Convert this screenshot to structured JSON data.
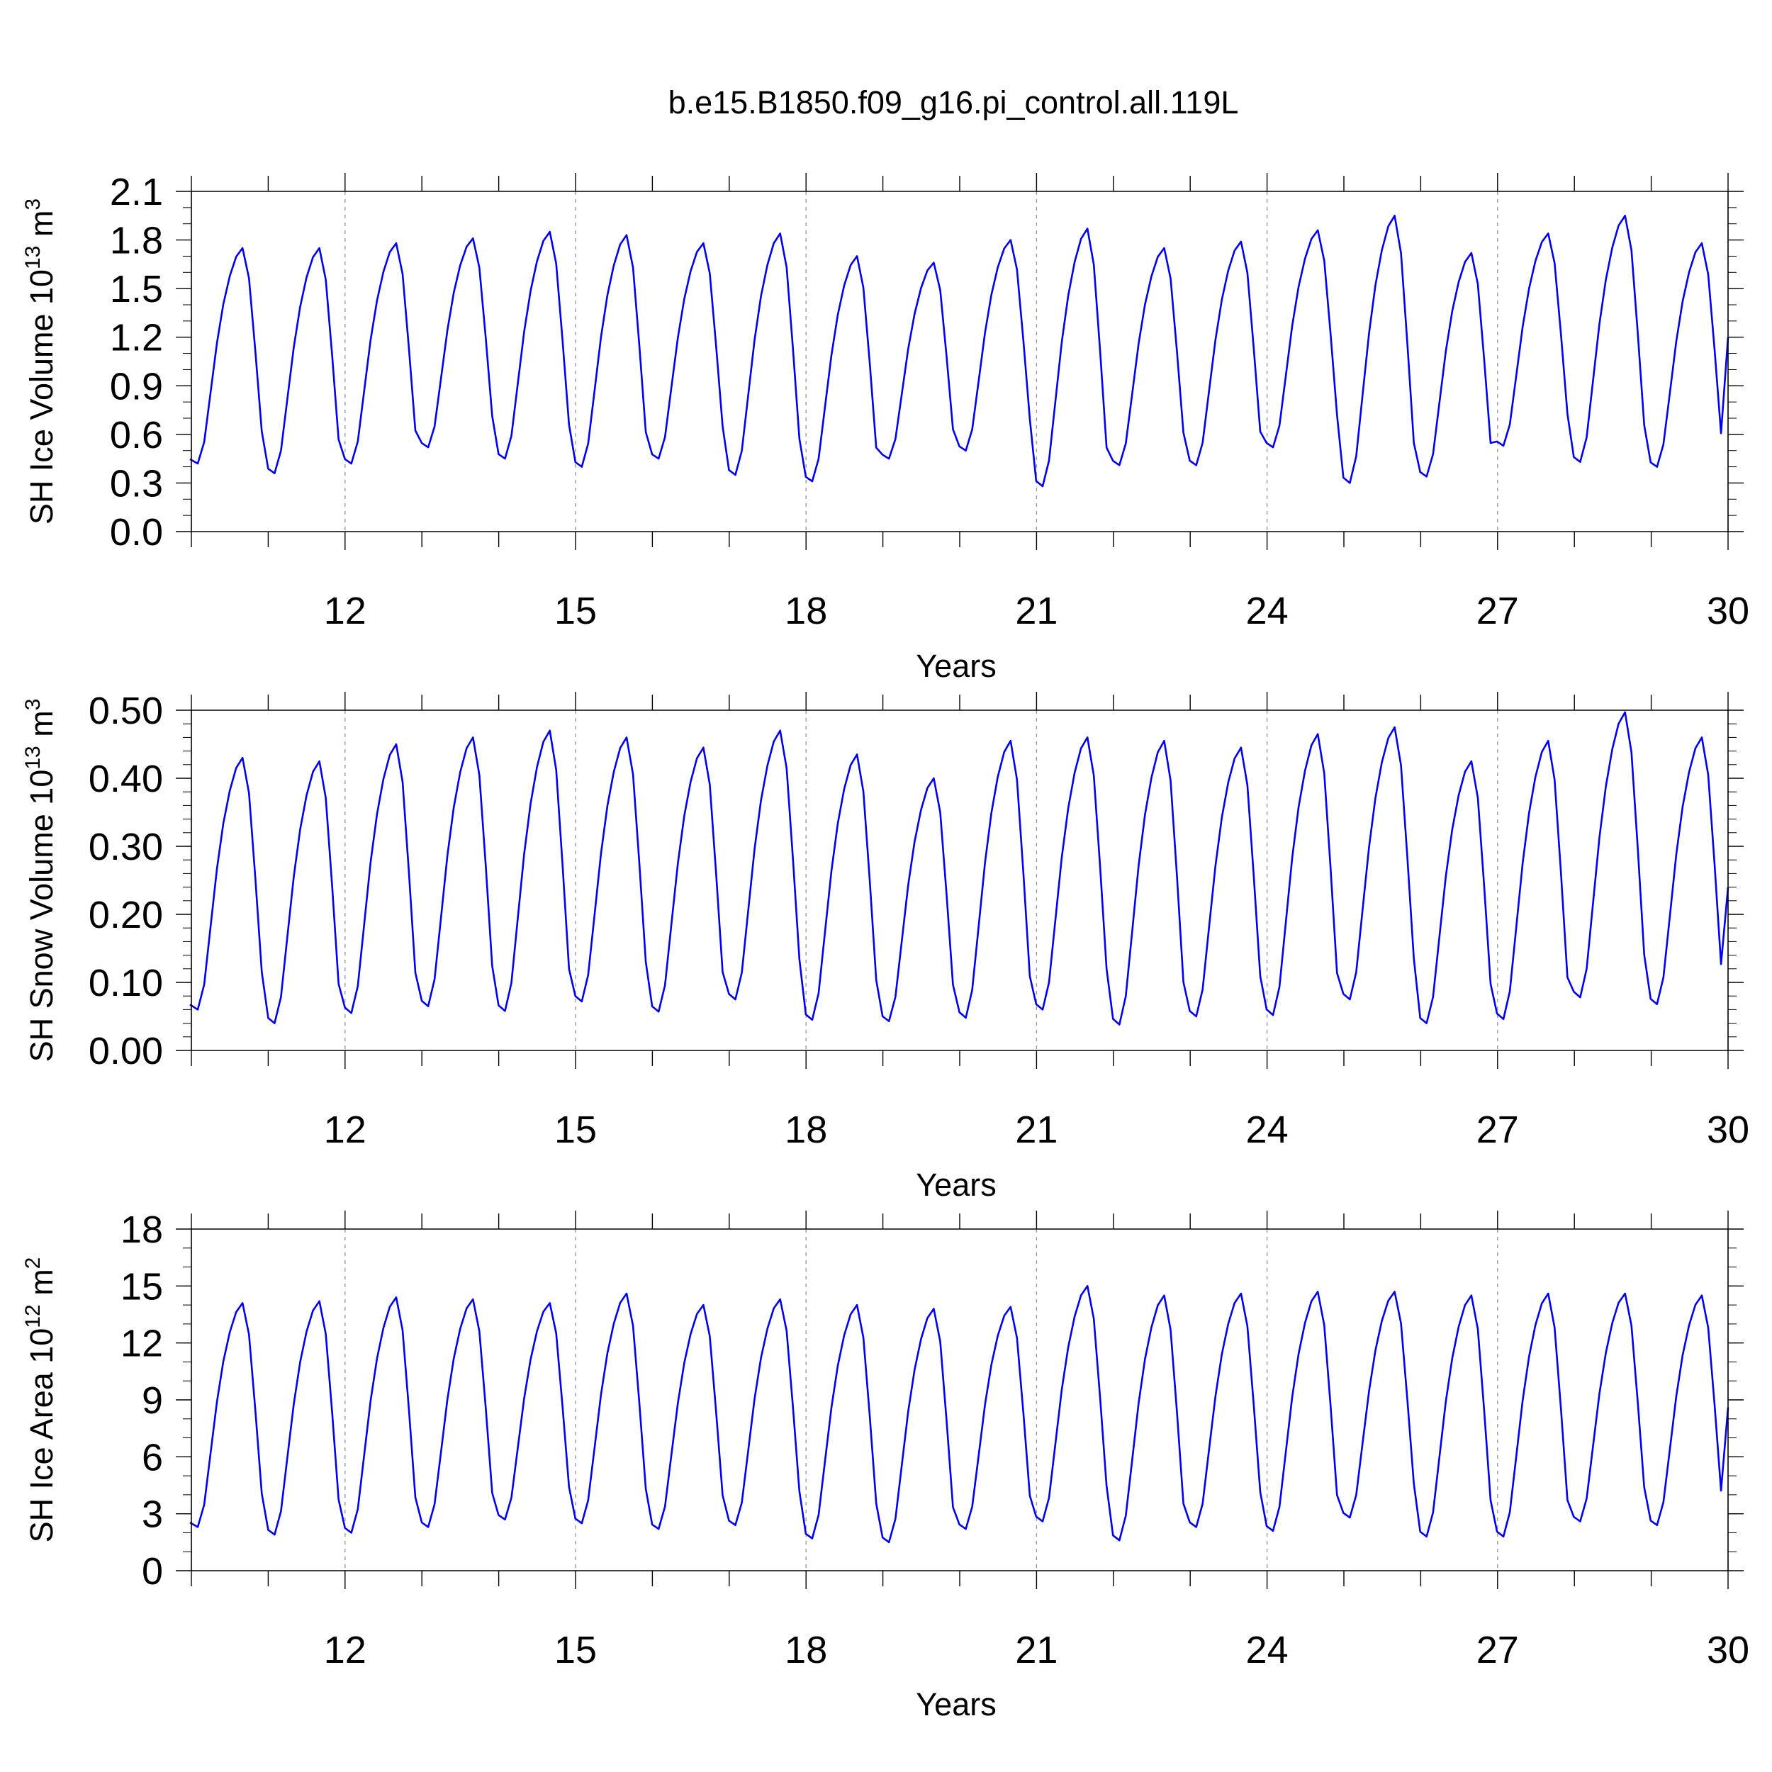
{
  "title": "b.e15.B1850.f09_g16.pi_control.all.119L",
  "chart_data": [
    {
      "type": "line",
      "ylabel": "SH Ice Volume 10",
      "ylabel_exp": "13",
      "ylabel_unit": "m",
      "ylabel_unit_exp": "3",
      "xlabel": "Years",
      "xlim": [
        10,
        30
      ],
      "xticks": [
        "12",
        "15",
        "18",
        "21",
        "24",
        "27",
        "30"
      ],
      "ylim": [
        0,
        2.1
      ],
      "yticks": [
        "0.0",
        "0.3",
        "0.6",
        "0.9",
        "1.2",
        "1.5",
        "1.8",
        "2.1"
      ],
      "ytick_step": 0.3,
      "y_minor_step": 0.1,
      "x_start": 10.0,
      "x_step": 0.0833,
      "series": [
        {
          "color": "#0000ee",
          "cycle_min": [
            0.42,
            0.36,
            0.42,
            0.52,
            0.45,
            0.4,
            0.45,
            0.35,
            0.31,
            0.45,
            0.5,
            0.28,
            0.41,
            0.41,
            0.52,
            0.3,
            0.34,
            0.53,
            0.43,
            0.4
          ],
          "cycle_max": [
            1.75,
            1.75,
            1.78,
            1.81,
            1.85,
            1.83,
            1.78,
            1.84,
            1.7,
            1.66,
            1.8,
            1.87,
            1.75,
            1.79,
            1.86,
            1.95,
            1.72,
            1.84,
            1.95,
            1.78
          ],
          "end_value": 1.2
        }
      ]
    },
    {
      "type": "line",
      "ylabel": "SH Snow Volume 10",
      "ylabel_exp": "13",
      "ylabel_unit": "m",
      "ylabel_unit_exp": "3",
      "xlabel": "Years",
      "xlim": [
        10,
        30
      ],
      "xticks": [
        "12",
        "15",
        "18",
        "21",
        "24",
        "27",
        "30"
      ],
      "ylim": [
        0,
        0.5
      ],
      "yticks": [
        "0.00",
        "0.10",
        "0.20",
        "0.30",
        "0.40",
        "0.50"
      ],
      "ytick_step": 0.1,
      "y_minor_step": 0.02,
      "x_start": 10.0,
      "x_step": 0.0833,
      "series": [
        {
          "color": "#0000ee",
          "cycle_min": [
            0.06,
            0.04,
            0.055,
            0.065,
            0.058,
            0.072,
            0.057,
            0.075,
            0.045,
            0.043,
            0.048,
            0.06,
            0.038,
            0.05,
            0.052,
            0.075,
            0.04,
            0.046,
            0.078,
            0.068
          ],
          "cycle_max": [
            0.43,
            0.425,
            0.45,
            0.46,
            0.47,
            0.46,
            0.445,
            0.47,
            0.435,
            0.4,
            0.455,
            0.46,
            0.455,
            0.445,
            0.465,
            0.475,
            0.425,
            0.455,
            0.497,
            0.46
          ],
          "end_value": 0.24
        }
      ]
    },
    {
      "type": "line",
      "ylabel": "SH Ice Area 10",
      "ylabel_exp": "12",
      "ylabel_unit": "m",
      "ylabel_unit_exp": "2",
      "xlabel": "Years",
      "xlim": [
        10,
        30
      ],
      "xticks": [
        "12",
        "15",
        "18",
        "21",
        "24",
        "27",
        "30"
      ],
      "ylim": [
        0,
        18
      ],
      "yticks": [
        "0",
        "3",
        "6",
        "9",
        "12",
        "15",
        "18"
      ],
      "ytick_step": 3,
      "y_minor_step": 1,
      "x_start": 10.0,
      "x_step": 0.0833,
      "series": [
        {
          "color": "#0000ee",
          "cycle_min": [
            2.3,
            1.9,
            2.0,
            2.3,
            2.7,
            2.5,
            2.2,
            2.4,
            1.7,
            1.5,
            2.2,
            2.6,
            1.6,
            2.3,
            2.1,
            2.8,
            1.8,
            1.8,
            2.6,
            2.4
          ],
          "cycle_max": [
            14.1,
            14.2,
            14.4,
            14.3,
            14.1,
            14.6,
            14.0,
            14.3,
            14.0,
            13.8,
            13.9,
            15.0,
            14.5,
            14.6,
            14.7,
            14.7,
            14.5,
            14.6,
            14.6,
            14.5
          ],
          "end_value": 8.6
        }
      ]
    }
  ]
}
